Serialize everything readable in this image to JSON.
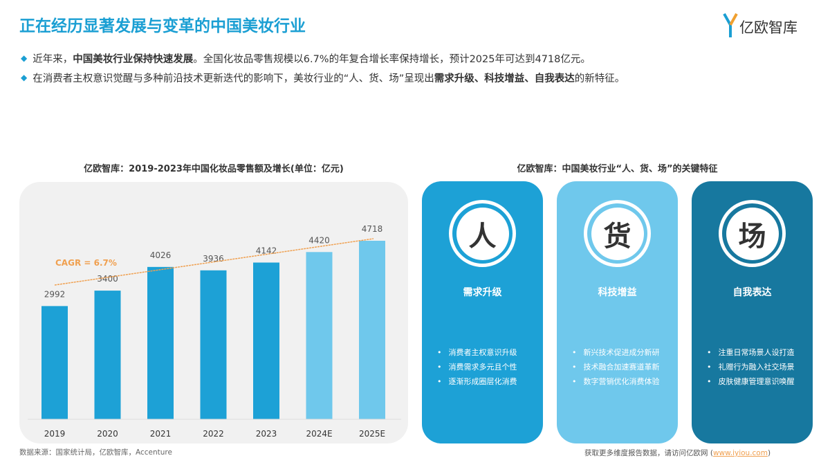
{
  "header": {
    "title": "正在经历显著发展与变革的中国美妆行业",
    "logo_text": "亿欧智库"
  },
  "bullets": [
    {
      "pre": "近年来，",
      "bold": "中国美妆行业保持快速发展",
      "post": "。全国化妆品零售规模以6.7%的年复合增长率保持增长，预计2025年可达到4718亿元。"
    },
    {
      "pre": "在消费者主权意识觉醒与多种前沿技术更新迭代的影响下，美妆行业的“人、货、场”呈现出",
      "bold": "需求升级、科技增益、自我表达",
      "post": "的新特征。"
    }
  ],
  "chart_data": {
    "type": "bar",
    "title": "亿欧智库：2019-2023年中国化妆品零售额及增长(单位：亿元)",
    "categories": [
      "2019",
      "2020",
      "2021",
      "2022",
      "2023",
      "2024E",
      "2025E"
    ],
    "values": [
      2992,
      3400,
      4026,
      3936,
      4142,
      4420,
      4718
    ],
    "forecast": [
      false,
      false,
      false,
      false,
      false,
      true,
      true
    ],
    "annotation": "CAGR = 6.7%",
    "ylim": [
      0,
      5000
    ],
    "colors": {
      "actual": "#1da1d6",
      "forecast": "#6fc8ec",
      "trend": "#f0a050"
    }
  },
  "diagram": {
    "title": "亿欧智库：中国美妆行业“人、货、场”的关键特征",
    "cards": [
      {
        "char": "人",
        "heading": "需求升级",
        "color": "#1da1d6",
        "items": [
          "消费者主权意识升级",
          "消费需求多元且个性",
          "逐渐形成圈层化消费"
        ]
      },
      {
        "char": "货",
        "heading": "科技增益",
        "color": "#6fc8ec",
        "items": [
          "新兴技术促进成分新研",
          "技术融合加速赛道革新",
          "数字营销优化消费体验"
        ]
      },
      {
        "char": "场",
        "heading": "自我表达",
        "color": "#17789f",
        "items": [
          "注重日常场景人设打造",
          "礼赠行为融入社交场景",
          "皮肤健康管理意识唤醒"
        ]
      }
    ]
  },
  "footer": {
    "source": "数据来源：国家统计局，亿欧智库，Accenture",
    "more": "获取更多维度报告数据，请访问亿欧网 (",
    "link": "www.iyiou.com",
    "close": ")"
  }
}
